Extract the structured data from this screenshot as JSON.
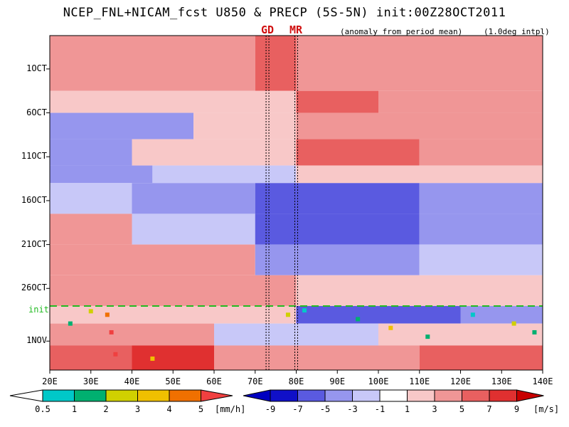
{
  "title": "NCEP_FNL+NICAM_fcst U850 & PRECP (5S-5N) init:00Z28OCT2011",
  "subtitle_note": "(anomaly from period mean)",
  "interp_note": "(1.0deg intpl)",
  "markers": {
    "gd_label": "GD",
    "mr_label": "MR",
    "gd_lon": 73,
    "mr_lon": 80
  },
  "init_label": "init",
  "colors": {
    "init_line": "#22bb22",
    "marker_label": "#d01010",
    "wind_neg": [
      "#1010c8",
      "#5a5ae0",
      "#9696ee",
      "#c8c8f8"
    ],
    "wind_pos": [
      "#f8c8c8",
      "#f09696",
      "#e86060",
      "#e03030",
      "#c80000"
    ],
    "precip": [
      "#00c8c8",
      "#00b070",
      "#d0d000",
      "#f0c000",
      "#f07000",
      "#f04040"
    ]
  },
  "chart_data": {
    "type": "heatmap",
    "description_type": "hovmoller",
    "x": {
      "min": 20,
      "max": 140,
      "ticks": [
        "20E",
        "30E",
        "40E",
        "50E",
        "60E",
        "70E",
        "80E",
        "90E",
        "100E",
        "110E",
        "120E",
        "130E",
        "140E"
      ]
    },
    "y": {
      "ticks": [
        "1OCT",
        "6OCT",
        "11OCT",
        "16OCT",
        "21OCT",
        "26OCT",
        "1NOV"
      ],
      "tick_days": [
        1,
        6,
        11,
        16,
        21,
        26,
        32
      ],
      "day_min": -2.8,
      "day_max": 35.3,
      "init_day": 28
    },
    "precip_colorbar": {
      "levels": [
        "0.5",
        "1",
        "2",
        "3",
        "4",
        "5"
      ],
      "unit": "[mm/h]"
    },
    "wind_colorbar": {
      "levels": [
        "-9",
        "-7",
        "-5",
        "-3",
        "-1",
        "1",
        "3",
        "5",
        "7",
        "9"
      ],
      "unit": "[m/s]"
    },
    "bands": [
      {
        "d0": -2.8,
        "d1": 3.5,
        "segments": [
          {
            "lon0": 20,
            "lon1": 70,
            "v": 3
          },
          {
            "lon0": 70,
            "lon1": 80,
            "v": 5
          },
          {
            "lon0": 80,
            "lon1": 140,
            "v": 3
          }
        ]
      },
      {
        "d0": 3.5,
        "d1": 6.0,
        "segments": [
          {
            "lon0": 20,
            "lon1": 80,
            "v": 1
          },
          {
            "lon0": 80,
            "lon1": 100,
            "v": 5
          },
          {
            "lon0": 100,
            "lon1": 140,
            "v": 3
          }
        ]
      },
      {
        "d0": 6.0,
        "d1": 9.0,
        "segments": [
          {
            "lon0": 20,
            "lon1": 55,
            "v": -3
          },
          {
            "lon0": 55,
            "lon1": 80,
            "v": 1
          },
          {
            "lon0": 80,
            "lon1": 140,
            "v": 3
          }
        ]
      },
      {
        "d0": 9.0,
        "d1": 12.0,
        "segments": [
          {
            "lon0": 20,
            "lon1": 40,
            "v": -3
          },
          {
            "lon0": 40,
            "lon1": 80,
            "v": 1
          },
          {
            "lon0": 80,
            "lon1": 110,
            "v": 5
          },
          {
            "lon0": 110,
            "lon1": 140,
            "v": 3
          }
        ]
      },
      {
        "d0": 12.0,
        "d1": 14.0,
        "segments": [
          {
            "lon0": 20,
            "lon1": 45,
            "v": -3
          },
          {
            "lon0": 45,
            "lon1": 80,
            "v": -1
          },
          {
            "lon0": 80,
            "lon1": 140,
            "v": 1
          }
        ]
      },
      {
        "d0": 14.0,
        "d1": 17.5,
        "segments": [
          {
            "lon0": 20,
            "lon1": 40,
            "v": -1
          },
          {
            "lon0": 40,
            "lon1": 70,
            "v": -3
          },
          {
            "lon0": 70,
            "lon1": 110,
            "v": -5
          },
          {
            "lon0": 110,
            "lon1": 140,
            "v": -3
          }
        ]
      },
      {
        "d0": 17.5,
        "d1": 21.0,
        "segments": [
          {
            "lon0": 20,
            "lon1": 40,
            "v": 3
          },
          {
            "lon0": 40,
            "lon1": 70,
            "v": -1
          },
          {
            "lon0": 70,
            "lon1": 110,
            "v": -5
          },
          {
            "lon0": 110,
            "lon1": 140,
            "v": -3
          }
        ]
      },
      {
        "d0": 21.0,
        "d1": 24.5,
        "segments": [
          {
            "lon0": 20,
            "lon1": 70,
            "v": 3
          },
          {
            "lon0": 70,
            "lon1": 110,
            "v": -3
          },
          {
            "lon0": 110,
            "lon1": 140,
            "v": -1
          }
        ]
      },
      {
        "d0": 24.5,
        "d1": 28.0,
        "segments": [
          {
            "lon0": 20,
            "lon1": 80,
            "v": 3
          },
          {
            "lon0": 80,
            "lon1": 140,
            "v": 1
          }
        ]
      },
      {
        "d0": 28.0,
        "d1": 30.0,
        "segments": [
          {
            "lon0": 20,
            "lon1": 80,
            "v": 1
          },
          {
            "lon0": 80,
            "lon1": 120,
            "v": -5
          },
          {
            "lon0": 120,
            "lon1": 140,
            "v": -3
          }
        ]
      },
      {
        "d0": 30.0,
        "d1": 32.5,
        "segments": [
          {
            "lon0": 20,
            "lon1": 60,
            "v": 3
          },
          {
            "lon0": 60,
            "lon1": 100,
            "v": -1
          },
          {
            "lon0": 100,
            "lon1": 140,
            "v": 1
          }
        ]
      },
      {
        "d0": 32.5,
        "d1": 35.3,
        "segments": [
          {
            "lon0": 20,
            "lon1": 40,
            "v": 5
          },
          {
            "lon0": 40,
            "lon1": 60,
            "v": 7
          },
          {
            "lon0": 60,
            "lon1": 110,
            "v": 3
          },
          {
            "lon0": 110,
            "lon1": 140,
            "v": 5
          }
        ]
      }
    ],
    "precip_spots": [
      {
        "lon": 34,
        "day": 29.0,
        "level": 5
      },
      {
        "lon": 35,
        "day": 31.0,
        "level": 6
      },
      {
        "lon": 36,
        "day": 33.5,
        "level": 6
      },
      {
        "lon": 25,
        "day": 30.0,
        "level": 2
      },
      {
        "lon": 30,
        "day": 28.6,
        "level": 3
      },
      {
        "lon": 45,
        "day": 34.0,
        "level": 4
      },
      {
        "lon": 78,
        "day": 29.0,
        "level": 3
      },
      {
        "lon": 82,
        "day": 28.5,
        "level": 1
      },
      {
        "lon": 95,
        "day": 29.5,
        "level": 2
      },
      {
        "lon": 103,
        "day": 30.5,
        "level": 4
      },
      {
        "lon": 112,
        "day": 31.5,
        "level": 2
      },
      {
        "lon": 123,
        "day": 29.0,
        "level": 1
      },
      {
        "lon": 133,
        "day": 30.0,
        "level": 3
      },
      {
        "lon": 138,
        "day": 31.0,
        "level": 2
      }
    ]
  }
}
